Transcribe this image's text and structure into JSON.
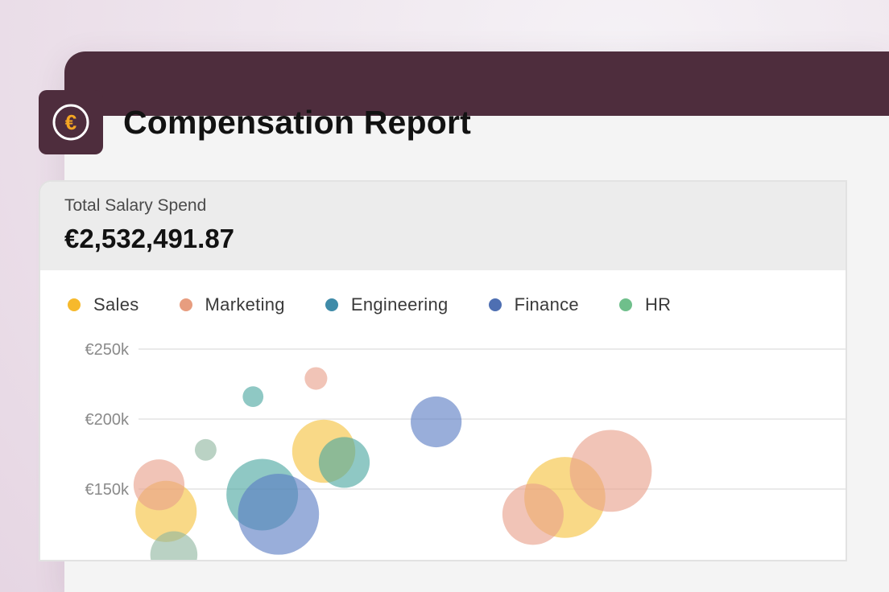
{
  "header": {
    "title": "Compensation Report",
    "app_icon": "euro-coin-icon",
    "icon_color": "#f5a623",
    "brand_color": "#4e2d3d"
  },
  "kpi": {
    "label": "Total Salary Spend",
    "value": "€2,532,491.87"
  },
  "chart_data": {
    "type": "scatter",
    "title": "",
    "xlabel": "",
    "ylabel": "",
    "ylim": [
      100000,
      250000
    ],
    "yticks": [
      "€250k",
      "€200k",
      "€150k"
    ],
    "yticks_values": [
      250000,
      200000,
      150000
    ],
    "grid": true,
    "legend_position": "top-left",
    "series": [
      {
        "name": "Sales",
        "color": "#f6c13d",
        "points": [
          {
            "x": 0.262,
            "y": 177000,
            "r": 0.067
          },
          {
            "x": 0.603,
            "y": 144000,
            "r": 0.086
          },
          {
            "x": 0.039,
            "y": 134000,
            "r": 0.065
          }
        ]
      },
      {
        "name": "Marketing",
        "color": "#e8a08a",
        "points": [
          {
            "x": 0.251,
            "y": 229000,
            "r": 0.024
          },
          {
            "x": 0.029,
            "y": 153000,
            "r": 0.054
          },
          {
            "x": 0.668,
            "y": 163000,
            "r": 0.087
          },
          {
            "x": 0.558,
            "y": 132000,
            "r": 0.065
          }
        ]
      },
      {
        "name": "Engineering",
        "color": "#4aa7a0",
        "points": [
          {
            "x": 0.162,
            "y": 216000,
            "r": 0.022
          },
          {
            "x": 0.291,
            "y": 169000,
            "r": 0.054
          },
          {
            "x": 0.175,
            "y": 146000,
            "r": 0.076
          }
        ]
      },
      {
        "name": "Finance",
        "color": "#5a7cc4",
        "points": [
          {
            "x": 0.421,
            "y": 198000,
            "r": 0.054
          },
          {
            "x": 0.198,
            "y": 132000,
            "r": 0.086
          }
        ]
      },
      {
        "name": "HR",
        "color": "#8fb7a0",
        "points": [
          {
            "x": 0.095,
            "y": 178000,
            "r": 0.023
          },
          {
            "x": 0.05,
            "y": 103000,
            "r": 0.05
          }
        ]
      }
    ]
  }
}
